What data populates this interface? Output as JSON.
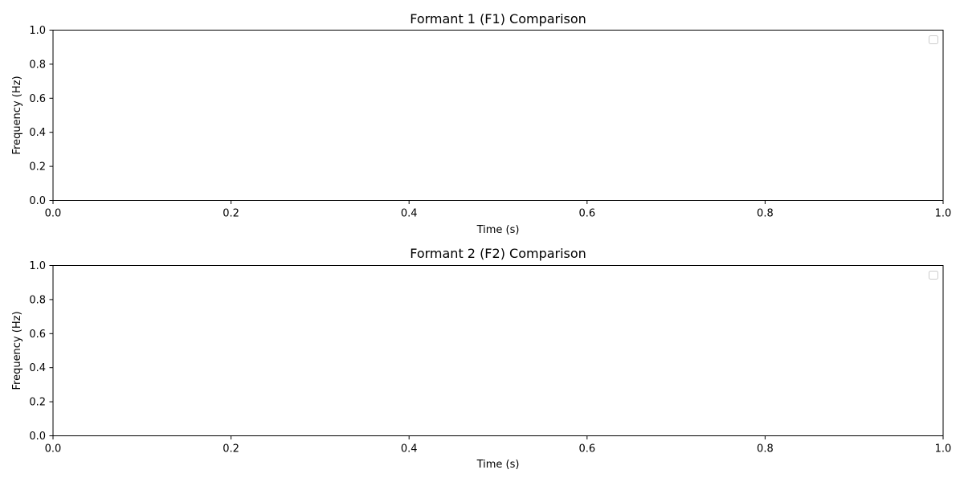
{
  "chart_data": [
    {
      "type": "line",
      "title": "Formant 1 (F1) Comparison",
      "xlabel": "Time (s)",
      "ylabel": "Frequency (Hz)",
      "xlim": [
        0.0,
        1.0
      ],
      "ylim": [
        0.0,
        1.0
      ],
      "x_ticks": [
        "0.0",
        "0.2",
        "0.4",
        "0.6",
        "0.8",
        "1.0"
      ],
      "y_ticks": [
        "0.0",
        "0.2",
        "0.4",
        "0.6",
        "0.8",
        "1.0"
      ],
      "series": [],
      "legend": "upper-right (empty)",
      "grid": false
    },
    {
      "type": "line",
      "title": "Formant 2 (F2) Comparison",
      "xlabel": "Time (s)",
      "ylabel": "Frequency (Hz)",
      "xlim": [
        0.0,
        1.0
      ],
      "ylim": [
        0.0,
        1.0
      ],
      "x_ticks": [
        "0.0",
        "0.2",
        "0.4",
        "0.6",
        "0.8",
        "1.0"
      ],
      "y_ticks": [
        "0.0",
        "0.2",
        "0.4",
        "0.6",
        "0.8",
        "1.0"
      ],
      "series": [],
      "legend": "upper-right (empty)",
      "grid": false
    }
  ]
}
